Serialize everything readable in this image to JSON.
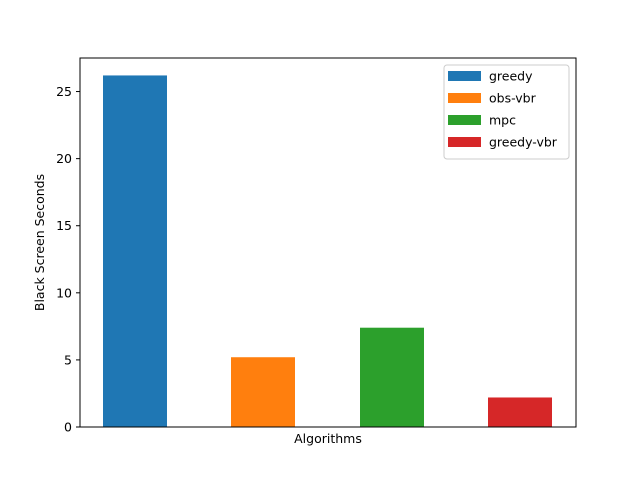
{
  "chart_data": {
    "type": "bar",
    "title": "",
    "xlabel": "Algorithms",
    "ylabel": "Black Screen Seconds",
    "ylim": [
      0,
      27.5
    ],
    "yticks": [
      0,
      5,
      10,
      15,
      20,
      25
    ],
    "grid": false,
    "legend_position": "top-right",
    "series": [
      {
        "name": "greedy",
        "value": 26.2,
        "color": "#1f77b4"
      },
      {
        "name": "obs-vbr",
        "value": 5.2,
        "color": "#ff7f0e"
      },
      {
        "name": "mpc",
        "value": 7.4,
        "color": "#2ca02c"
      },
      {
        "name": "greedy-vbr",
        "value": 2.2,
        "color": "#d62728"
      }
    ]
  }
}
